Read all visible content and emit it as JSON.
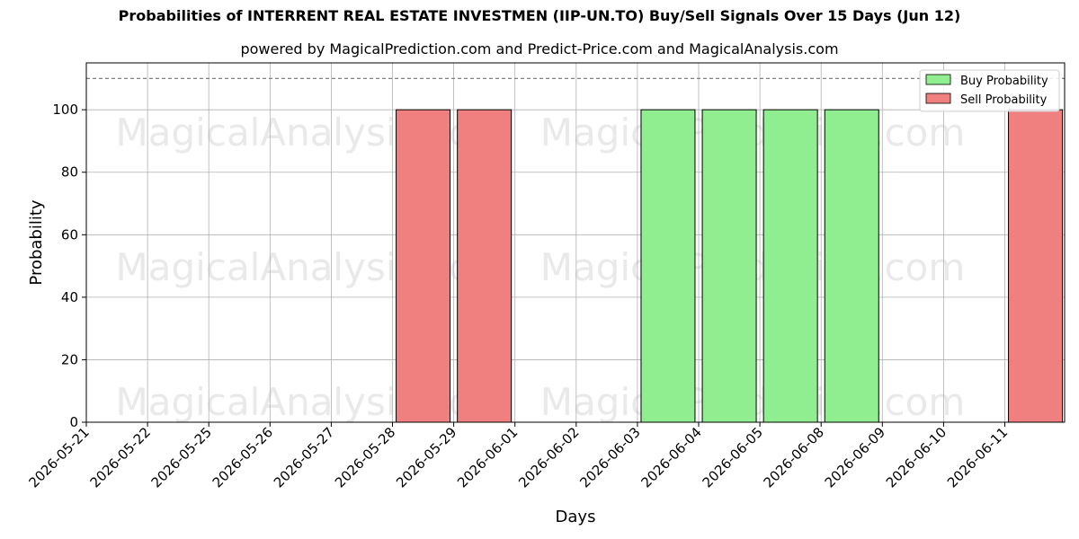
{
  "chart_data": {
    "type": "bar",
    "title": "Probabilities of INTERRENT REAL ESTATE INVESTMEN (IIP-UN.TO) Buy/Sell Signals Over 15 Days (Jun 12)",
    "subtitle": "powered by MagicalPrediction.com and Predict-Price.com and MagicalAnalysis.com",
    "xlabel": "Days",
    "ylabel": "Probability",
    "ylim": [
      0,
      115
    ],
    "yticks": [
      0,
      20,
      40,
      60,
      80,
      100
    ],
    "reference_line": 110,
    "grid": true,
    "legend_position": "top-right",
    "categories": [
      "2026-05-21",
      "2026-05-22",
      "2026-05-25",
      "2026-05-26",
      "2026-05-27",
      "2026-05-28",
      "2026-05-29",
      "2026-06-01",
      "2026-06-02",
      "2026-06-03",
      "2026-06-04",
      "2026-06-05",
      "2026-06-08",
      "2026-06-09",
      "2026-06-10",
      "2026-06-11"
    ],
    "series": [
      {
        "name": "Buy Probability",
        "color": "#90ee90",
        "values": [
          0,
          0,
          0,
          0,
          0,
          0,
          0,
          0,
          0,
          100,
          100,
          100,
          100,
          0,
          0,
          0
        ]
      },
      {
        "name": "Sell Probability",
        "color": "#f08080",
        "values": [
          0,
          0,
          0,
          0,
          0,
          100,
          100,
          0,
          0,
          0,
          0,
          0,
          0,
          0,
          0,
          100
        ]
      }
    ],
    "watermarks": [
      "MagicalAnalysis.com",
      "MagicalPrediction.com"
    ]
  }
}
